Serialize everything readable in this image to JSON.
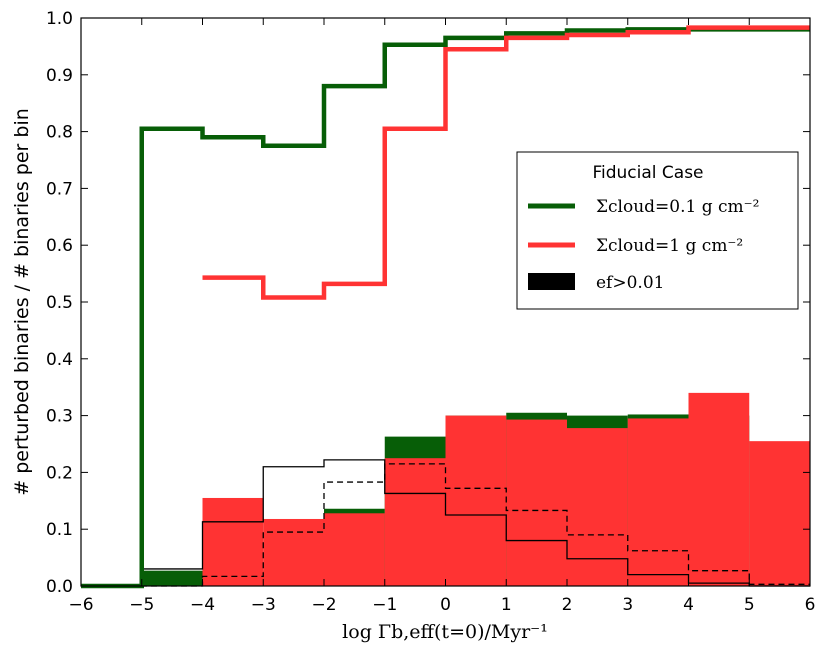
{
  "chart_data": {
    "type": "step-histogram",
    "title": "",
    "xlabel": "log Γb,eff(t=0)/Myr⁻¹",
    "ylabel": "# perturbed binaries / # binaries per bin",
    "xlim": [
      -6,
      6
    ],
    "ylim": [
      0,
      1.0
    ],
    "xticks": [
      -6,
      -5,
      -4,
      -3,
      -2,
      -1,
      0,
      1,
      2,
      3,
      4,
      5,
      6
    ],
    "yticks": [
      0.0,
      0.1,
      0.2,
      0.3,
      0.4,
      0.5,
      0.6,
      0.7,
      0.8,
      0.9,
      1.0
    ],
    "tick_labels_x": [
      "−6",
      "−5",
      "−4",
      "−3",
      "−2",
      "−1",
      "0",
      "1",
      "2",
      "3",
      "4",
      "5",
      "6"
    ],
    "tick_labels_y": [
      "0.0",
      "0.1",
      "0.2",
      "0.3",
      "0.4",
      "0.5",
      "0.6",
      "0.7",
      "0.8",
      "0.9",
      "1.0"
    ],
    "bin_edges": [
      -6,
      -5,
      -4,
      -3,
      -2,
      -1,
      0,
      1,
      2,
      3,
      4,
      5,
      6
    ],
    "colors": {
      "green": "#075e07",
      "red": "#ff3333",
      "black": "#000000"
    },
    "legend": {
      "title": "Fiducial Case",
      "position": "center-right",
      "entries": [
        {
          "label": "Σcloud=0.1 g cm⁻²",
          "color": "#075e07",
          "style": "line"
        },
        {
          "label": "Σcloud=1 g cm⁻²",
          "color": "#ff3333",
          "style": "line"
        },
        {
          "label": "ef>0.01",
          "color": "#000000",
          "style": "patch"
        }
      ]
    },
    "series": [
      {
        "name": "Σcloud=0.1 g cm⁻²",
        "kind": "step-line",
        "color": "#075e07",
        "values": [
          0.0,
          0.805,
          0.79,
          0.775,
          0.88,
          0.953,
          0.965,
          0.973,
          0.978,
          0.98,
          0.98,
          0.98
        ]
      },
      {
        "name": "Σcloud=1 g cm⁻²",
        "kind": "step-line",
        "color": "#ff3333",
        "values": [
          null,
          null,
          0.543,
          0.508,
          0.532,
          0.805,
          0.945,
          0.965,
          0.97,
          0.975,
          0.983,
          0.983
        ]
      },
      {
        "name": "Σcloud=0.1 g cm⁻² (ef>0.01)",
        "kind": "filled-step",
        "color": "#075e07",
        "values": [
          0.0,
          0.027,
          0.027,
          0.027,
          0.136,
          0.263,
          0.3,
          0.305,
          0.3,
          0.302,
          0.3,
          0.0
        ]
      },
      {
        "name": "Σcloud=1 g cm⁻² (ef>0.01)",
        "kind": "filled-step",
        "color": "#ff3333",
        "values": [
          null,
          null,
          0.155,
          0.118,
          0.128,
          0.225,
          0.3,
          0.293,
          0.278,
          0.295,
          0.34,
          0.255
        ]
      },
      {
        "name": "black solid",
        "kind": "step-line-thin",
        "color": "#000000",
        "dash": false,
        "values": [
          0.0,
          0.03,
          0.113,
          0.21,
          0.222,
          0.163,
          0.125,
          0.08,
          0.048,
          0.02,
          0.005,
          0.0
        ]
      },
      {
        "name": "black dashed",
        "kind": "step-line-thin",
        "color": "#000000",
        "dash": true,
        "values": [
          0.0,
          0.0,
          0.017,
          0.095,
          0.183,
          0.215,
          0.172,
          0.133,
          0.09,
          0.062,
          0.027,
          0.003
        ]
      }
    ]
  }
}
